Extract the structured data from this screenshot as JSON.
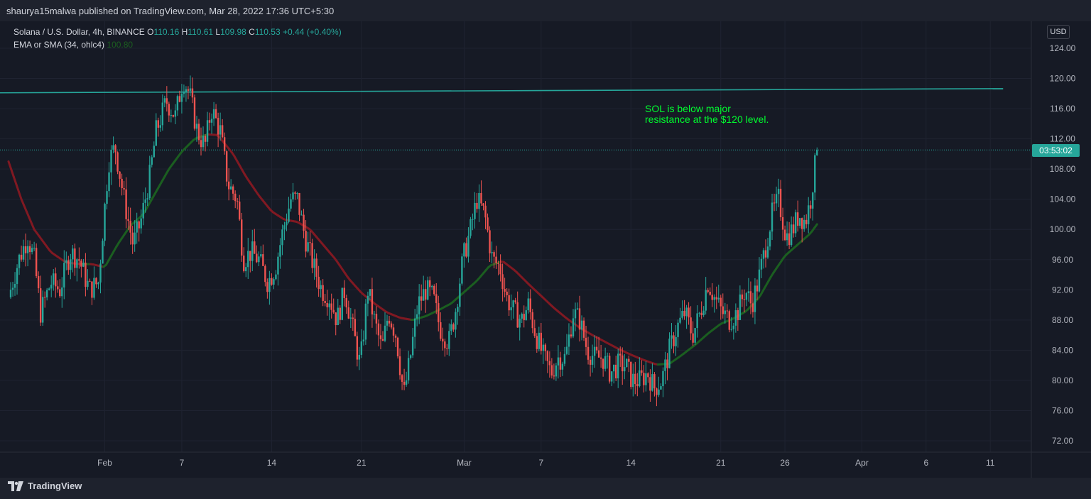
{
  "header": {
    "publish_line": "shaurya15malwa published on TradingView.com, Mar 28, 2022 17:36 UTC+5:30"
  },
  "legend": {
    "symbol": "Solana / U.S. Dollar, 4h, BINANCE",
    "o_label": "O",
    "o_value": "110.16",
    "h_label": "H",
    "h_value": "110.61",
    "l_label": "L",
    "l_value": "109.98",
    "c_label": "C",
    "c_value": "110.53",
    "change": "+0.44 (+0.40%)",
    "indicator": "EMA or SMA (34, ohlc4)",
    "indicator_value": "100.80"
  },
  "currency_label": "USD",
  "price_tag": "03:53:02",
  "annotation": {
    "line1": "SOL is below major",
    "line2": "resistance at the $120 level."
  },
  "footer": {
    "brand": "TradingView"
  },
  "colors": {
    "background": "#161a25",
    "bull": "#26a69a",
    "bear": "#ef5350",
    "ema_bull": "#1b5e20",
    "ema_bear": "#801922",
    "resistance": "#26a69a",
    "annotation": "#00ff2f"
  },
  "chart_data": {
    "type": "candlestick",
    "title": "Solana / U.S. Dollar, 4h, BINANCE",
    "ylabel": "USD",
    "ylim": [
      70,
      126
    ],
    "y_ticks": [
      "124.00",
      "120.00",
      "116.00",
      "112.00",
      "108.00",
      "104.00",
      "100.00",
      "96.00",
      "92.00",
      "88.00",
      "84.00",
      "80.00",
      "76.00",
      "72.00"
    ],
    "x_ticks": [
      {
        "label": "Feb",
        "day": 32
      },
      {
        "label": "7",
        "day": 38
      },
      {
        "label": "14",
        "day": 45
      },
      {
        "label": "21",
        "day": 52
      },
      {
        "label": "Mar",
        "day": 60
      },
      {
        "label": "7",
        "day": 66
      },
      {
        "label": "14",
        "day": 73
      },
      {
        "label": "21",
        "day": 80
      },
      {
        "label": "26",
        "day": 85
      },
      {
        "label": "Apr",
        "day": 91
      },
      {
        "label": "6",
        "day": 96
      },
      {
        "label": "11",
        "day": 101
      }
    ],
    "x_start_day": 24.5,
    "x_end_day": 104.2,
    "last_day": 87.55,
    "series": [
      {
        "name": "Solana / U.S. Dollar",
        "key_closes": [
          [
            24.5,
            91
          ],
          [
            25.3,
            96
          ],
          [
            26.0,
            99
          ],
          [
            26.5,
            96
          ],
          [
            27.0,
            89
          ],
          [
            27.8,
            93
          ],
          [
            28.5,
            92
          ],
          [
            29.3,
            97
          ],
          [
            30.0,
            96
          ],
          [
            30.8,
            92
          ],
          [
            31.5,
            93
          ],
          [
            32.3,
            109
          ],
          [
            32.8,
            111
          ],
          [
            33.5,
            104
          ],
          [
            34.2,
            98
          ],
          [
            34.8,
            101
          ],
          [
            35.5,
            107
          ],
          [
            36.0,
            113
          ],
          [
            36.8,
            117
          ],
          [
            37.5,
            115
          ],
          [
            38.1,
            120
          ],
          [
            38.6,
            118
          ],
          [
            39.2,
            113
          ],
          [
            39.8,
            111
          ],
          [
            40.3,
            116
          ],
          [
            41.0,
            113
          ],
          [
            41.6,
            106
          ],
          [
            42.3,
            104
          ],
          [
            42.8,
            96
          ],
          [
            43.4,
            97
          ],
          [
            44.0,
            96
          ],
          [
            44.7,
            93
          ],
          [
            45.3,
            95
          ],
          [
            45.9,
            100
          ],
          [
            46.5,
            104
          ],
          [
            47.0,
            104
          ],
          [
            47.6,
            99
          ],
          [
            48.3,
            95
          ],
          [
            48.9,
            92
          ],
          [
            49.5,
            91
          ],
          [
            50.1,
            88
          ],
          [
            50.7,
            92
          ],
          [
            51.3,
            87
          ],
          [
            51.9,
            82
          ],
          [
            52.5,
            92
          ],
          [
            53.0,
            88
          ],
          [
            53.6,
            84
          ],
          [
            54.1,
            89
          ],
          [
            54.7,
            86
          ],
          [
            55.3,
            78
          ],
          [
            55.8,
            83
          ],
          [
            56.4,
            90
          ],
          [
            57.0,
            92
          ],
          [
            57.6,
            91
          ],
          [
            58.1,
            87
          ],
          [
            58.8,
            85
          ],
          [
            59.3,
            89
          ],
          [
            59.9,
            96
          ],
          [
            60.5,
            100
          ],
          [
            61.0,
            104
          ],
          [
            61.6,
            102
          ],
          [
            62.2,
            96
          ],
          [
            62.8,
            95
          ],
          [
            63.3,
            91
          ],
          [
            63.9,
            89
          ],
          [
            64.5,
            88
          ],
          [
            65.0,
            90
          ],
          [
            65.6,
            86
          ],
          [
            66.2,
            83
          ],
          [
            66.8,
            81
          ],
          [
            67.3,
            83
          ],
          [
            67.9,
            83
          ],
          [
            68.5,
            89
          ],
          [
            69.0,
            88
          ],
          [
            69.6,
            84
          ],
          [
            70.2,
            83
          ],
          [
            70.8,
            83
          ],
          [
            71.4,
            81
          ],
          [
            72.0,
            82
          ],
          [
            72.6,
            82
          ],
          [
            73.1,
            80
          ],
          [
            73.7,
            80
          ],
          [
            74.3,
            81
          ],
          [
            74.8,
            79
          ],
          [
            75.4,
            80
          ],
          [
            76.0,
            84
          ],
          [
            76.6,
            87
          ],
          [
            77.2,
            89
          ],
          [
            77.8,
            86
          ],
          [
            78.4,
            89
          ],
          [
            79.0,
            93
          ],
          [
            79.5,
            91
          ],
          [
            80.1,
            89
          ],
          [
            80.7,
            88
          ],
          [
            81.3,
            89
          ],
          [
            81.9,
            92
          ],
          [
            82.4,
            90
          ],
          [
            82.9,
            93
          ],
          [
            83.4,
            97
          ],
          [
            84.0,
            102
          ],
          [
            84.5,
            104
          ],
          [
            85.1,
            99
          ],
          [
            85.6,
            100
          ],
          [
            86.1,
            102
          ],
          [
            86.6,
            101
          ],
          [
            87.0,
            104
          ],
          [
            87.3,
            108
          ],
          [
            87.55,
            110.53
          ]
        ]
      },
      {
        "name": "EMA or SMA (34, ohlc4)",
        "values": [
          [
            24.5,
            109
          ],
          [
            25.5,
            104
          ],
          [
            26.5,
            100
          ],
          [
            27.8,
            97
          ],
          [
            29.0,
            95.6
          ],
          [
            30.2,
            95.4
          ],
          [
            31.0,
            95.4
          ],
          [
            32.0,
            95
          ],
          [
            33.0,
            98
          ],
          [
            34.0,
            100.5
          ],
          [
            35.0,
            102
          ],
          [
            36.0,
            105
          ],
          [
            37.0,
            108
          ],
          [
            38.0,
            110.3
          ],
          [
            39.0,
            112
          ],
          [
            40.0,
            112.6
          ],
          [
            40.8,
            112.5
          ],
          [
            42.0,
            110
          ],
          [
            43.0,
            107
          ],
          [
            44.0,
            104.5
          ],
          [
            45.0,
            102.4
          ],
          [
            46.0,
            101.3
          ],
          [
            47.0,
            101
          ],
          [
            48.0,
            100
          ],
          [
            49.0,
            98
          ],
          [
            50.0,
            96
          ],
          [
            51.0,
            93.5
          ],
          [
            52.0,
            91.6
          ],
          [
            53.0,
            90.2
          ],
          [
            54.0,
            89
          ],
          [
            55.0,
            88.3
          ],
          [
            56.0,
            88
          ],
          [
            57.0,
            88.5
          ],
          [
            58.0,
            89.3
          ],
          [
            59.0,
            90.2
          ],
          [
            60.0,
            91.7
          ],
          [
            61.0,
            93.2
          ],
          [
            62.0,
            95.2
          ],
          [
            63.0,
            95.8
          ],
          [
            64.0,
            94.5
          ],
          [
            65.0,
            92.8
          ],
          [
            66.0,
            91.2
          ],
          [
            67.0,
            89.6
          ],
          [
            68.0,
            88.2
          ],
          [
            69.0,
            87
          ],
          [
            70.0,
            86
          ],
          [
            71.0,
            85.1
          ],
          [
            72.0,
            84.2
          ],
          [
            73.0,
            83.4
          ],
          [
            74.0,
            82.7
          ],
          [
            75.0,
            82.1
          ],
          [
            76.0,
            82.2
          ],
          [
            77.0,
            83.4
          ],
          [
            78.0,
            84.7
          ],
          [
            79.0,
            86.2
          ],
          [
            80.0,
            87.5
          ],
          [
            81.0,
            88.2
          ],
          [
            82.0,
            89.2
          ],
          [
            83.0,
            91
          ],
          [
            84.0,
            94
          ],
          [
            85.0,
            96.5
          ],
          [
            86.0,
            98
          ],
          [
            87.0,
            99.5
          ],
          [
            87.55,
            100.8
          ]
        ]
      }
    ],
    "resistance_line": {
      "from": [
        24.5,
        118.1
      ],
      "to": [
        102.0,
        118.65
      ]
    },
    "last_price_line": 110.53
  }
}
